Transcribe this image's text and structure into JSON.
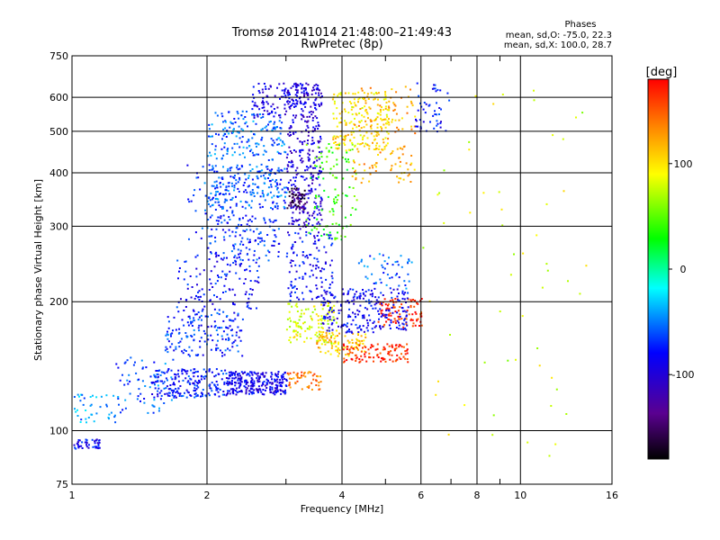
{
  "chart_data": {
    "type": "scatter",
    "title": "Tromsø 20141014 21:48:00–21:49:43",
    "subtitle": "RwPretec (8p)",
    "xlabel": "Frequency [MHz]",
    "ylabel": "Stationary phase Virtual Height [km]",
    "x_scale": "log",
    "y_scale": "log",
    "xlim": [
      1,
      16
    ],
    "ylim": [
      75,
      750
    ],
    "x_ticks": [
      1,
      2,
      4,
      6,
      8,
      10,
      16
    ],
    "x_tick_labels": [
      "1",
      "2",
      "4",
      "6",
      "8",
      "10",
      "16"
    ],
    "x_minor_ticks": [
      3,
      5,
      7,
      9
    ],
    "y_ticks": [
      75,
      100,
      200,
      300,
      400,
      500,
      600,
      750
    ],
    "y_tick_labels": [
      "75",
      "100",
      "200",
      "300",
      "400",
      "500",
      "600",
      "750"
    ],
    "grid": true,
    "legend_box": {
      "title": "Phases",
      "line1": "mean, sd,O: -75.0, 22.3",
      "line2": "mean, sd,X: 100.0, 28.7"
    },
    "colorbar": {
      "label": "[deg]",
      "range": [
        -180,
        180
      ],
      "ticks": [
        100,
        0,
        -100
      ],
      "tick_labels": [
        "100",
        "0",
        "-100"
      ],
      "colormap": "rainbow"
    },
    "series": [
      {
        "clusters": [
          {
            "f": [
              1.0,
              1.15
            ],
            "h": [
              91,
              96
            ],
            "phase": -85,
            "n": 45
          },
          {
            "f": [
              1.0,
              1.25
            ],
            "h": [
              105,
              122
            ],
            "phase": -45,
            "n": 40
          },
          {
            "f": [
              1.25,
              1.7
            ],
            "h": [
              110,
              150
            ],
            "phase": -60,
            "n": 70
          },
          {
            "f": [
              1.5,
              2.2
            ],
            "h": [
              120,
              140
            ],
            "phase": -75,
            "n": 200
          },
          {
            "f": [
              2.2,
              3.0
            ],
            "h": [
              122,
              138
            ],
            "phase": -90,
            "n": 260
          },
          {
            "f": [
              1.6,
              2.4
            ],
            "h": [
              150,
              190
            ],
            "phase": -70,
            "n": 160
          },
          {
            "f": [
              1.7,
              2.6
            ],
            "h": [
              190,
              260
            ],
            "phase": -80,
            "n": 130
          },
          {
            "f": [
              1.8,
              2.3
            ],
            "h": [
              280,
              420
            ],
            "phase": -65,
            "n": 60
          },
          {
            "f": [
              2.0,
              2.9
            ],
            "h": [
              250,
              320
            ],
            "phase": -70,
            "n": 130
          },
          {
            "f": [
              2.0,
              3.0
            ],
            "h": [
              330,
              420
            ],
            "phase": -60,
            "n": 210
          },
          {
            "f": [
              2.0,
              3.0
            ],
            "h": [
              430,
              560
            ],
            "phase": -55,
            "n": 170
          },
          {
            "f": [
              2.5,
              3.3
            ],
            "h": [
              540,
              650
            ],
            "phase": -95,
            "n": 120
          },
          {
            "f": [
              3.0,
              3.6
            ],
            "h": [
              300,
              650
            ],
            "phase": -100,
            "n": 320
          },
          {
            "f": [
              3.0,
              3.3
            ],
            "h": [
              330,
              370
            ],
            "phase": -155,
            "n": 55
          },
          {
            "f": [
              3.3,
              4.3
            ],
            "h": [
              280,
              470
            ],
            "phase": 40,
            "n": 110
          },
          {
            "f": [
              3.8,
              5.1
            ],
            "h": [
              450,
              620
            ],
            "phase": 100,
            "n": 180
          },
          {
            "f": [
              4.2,
              5.8
            ],
            "h": [
              380,
              640
            ],
            "phase": 120,
            "n": 150
          },
          {
            "f": [
              3.0,
              3.8
            ],
            "h": [
              200,
              300
            ],
            "phase": -85,
            "n": 130
          },
          {
            "f": [
              3.0,
              3.6
            ],
            "h": [
              125,
              138
            ],
            "phase": 140,
            "n": 50
          },
          {
            "f": [
              3.0,
              3.9
            ],
            "h": [
              160,
              200
            ],
            "phase": 85,
            "n": 130
          },
          {
            "f": [
              3.5,
              4.5
            ],
            "h": [
              150,
              170
            ],
            "phase": 115,
            "n": 90
          },
          {
            "f": [
              4.0,
              5.6
            ],
            "h": [
              145,
              160
            ],
            "phase": 165,
            "n": 110
          },
          {
            "f": [
              4.8,
              6.0
            ],
            "h": [
              175,
              205
            ],
            "phase": 165,
            "n": 90
          },
          {
            "f": [
              3.6,
              5.6
            ],
            "h": [
              170,
              215
            ],
            "phase": -85,
            "n": 230
          },
          {
            "f": [
              4.3,
              5.7
            ],
            "h": [
              215,
              260
            ],
            "phase": -60,
            "n": 50
          },
          {
            "f": [
              5.8,
              7.0
            ],
            "h": [
              500,
              650
            ],
            "phase": -80,
            "n": 50
          },
          {
            "f": [
              6.0,
              14.0
            ],
            "h": [
              80,
              650
            ],
            "phase": 80,
            "n": 55
          }
        ]
      }
    ]
  }
}
